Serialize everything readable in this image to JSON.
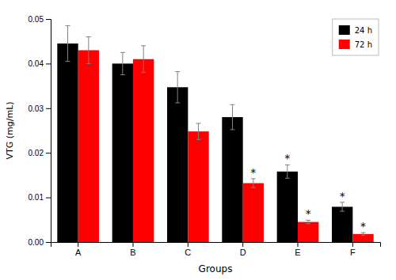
{
  "chart_data": {
    "type": "bar",
    "categories": [
      "A",
      "B",
      "C",
      "D",
      "E",
      "F"
    ],
    "series": [
      {
        "name": "24 h",
        "color": "#000000",
        "values": [
          0.0445,
          0.04,
          0.0347,
          0.028,
          0.0158,
          0.0079
        ],
        "errors": [
          0.004,
          0.0025,
          0.0035,
          0.0028,
          0.0015,
          0.001
        ]
      },
      {
        "name": "72 h",
        "color": "#ff0000",
        "values": [
          0.043,
          0.041,
          0.0248,
          0.0132,
          0.0045,
          0.0018
        ],
        "errors": [
          0.003,
          0.003,
          0.0018,
          0.001,
          0.0004,
          0.0003
        ]
      }
    ],
    "xlabel": "Groups",
    "ylabel": "VTG (mg/mL)",
    "ylim": [
      0,
      0.05
    ],
    "yticks": [
      {
        "value": 0,
        "label": "0.00"
      },
      0.01,
      0.02,
      0.03,
      0.04,
      0.05
    ],
    "annotations": [
      {
        "text": "*",
        "series": "24 h",
        "category": "E"
      },
      {
        "text": "*",
        "series": "24 h",
        "category": "F"
      },
      {
        "text": "*",
        "series": "72 h",
        "category": "D"
      },
      {
        "text": "*",
        "series": "72 h",
        "category": "E"
      },
      {
        "text": "*",
        "series": "72 h",
        "category": "F"
      }
    ],
    "legend": "upper right",
    "grid": false
  }
}
